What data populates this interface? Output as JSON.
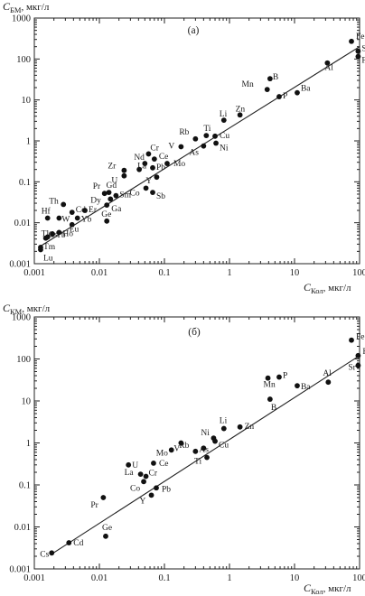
{
  "chart_data": [
    {
      "type": "scatter",
      "title": "(а)",
      "ylabel": {
        "symbol": "C",
        "sub": "БМ",
        "unit": ", мкг/л"
      },
      "xlabel": {
        "symbol": "C",
        "sub": "Кол",
        "unit": ", мкг/л"
      },
      "log_x": true,
      "log_y": true,
      "xlim": [
        0.001,
        100
      ],
      "ylim": [
        0.001,
        1000
      ],
      "x_ticks": [
        "0.001",
        "0.01",
        "0.1",
        "1",
        "10",
        "100"
      ],
      "y_ticks": [
        "0.001",
        "0.01",
        "0.1",
        "1",
        "10",
        "100",
        "1000"
      ],
      "fit_line": {
        "x": [
          0.0013,
          100
        ],
        "y": [
          0.0028,
          200
        ]
      },
      "points": [
        {
          "label": "Fe",
          "x": 75,
          "y": 270
        },
        {
          "label": "Sr",
          "x": 95,
          "y": 155
        },
        {
          "label": "F",
          "x": 95,
          "y": 115
        },
        {
          "label": "Al",
          "x": 32,
          "y": 80
        },
        {
          "label": "B",
          "x": 4.2,
          "y": 33
        },
        {
          "label": "Mn",
          "x": 3.8,
          "y": 18
        },
        {
          "label": "Ba",
          "x": 11,
          "y": 15
        },
        {
          "label": "P",
          "x": 5.8,
          "y": 12
        },
        {
          "label": "Li",
          "x": 0.82,
          "y": 3.2
        },
        {
          "label": "Zn",
          "x": 1.45,
          "y": 4.3
        },
        {
          "label": "Rb",
          "x": 0.3,
          "y": 1.12
        },
        {
          "label": "Ti",
          "x": 0.44,
          "y": 1.35
        },
        {
          "label": "Cu",
          "x": 0.6,
          "y": 1.3
        },
        {
          "label": "V",
          "x": 0.18,
          "y": 0.72
        },
        {
          "label": "As",
          "x": 0.4,
          "y": 0.75
        },
        {
          "label": "Ni",
          "x": 0.62,
          "y": 0.88
        },
        {
          "label": "Cr",
          "x": 0.057,
          "y": 0.48
        },
        {
          "label": "Ce",
          "x": 0.07,
          "y": 0.36
        },
        {
          "label": "Nd",
          "x": 0.05,
          "y": 0.28
        },
        {
          "label": "Mo",
          "x": 0.11,
          "y": 0.28
        },
        {
          "label": "La",
          "x": 0.041,
          "y": 0.2
        },
        {
          "label": "Zr",
          "x": 0.024,
          "y": 0.19
        },
        {
          "label": "Pb",
          "x": 0.066,
          "y": 0.22
        },
        {
          "label": "Y",
          "x": 0.076,
          "y": 0.13
        },
        {
          "label": "U",
          "x": 0.024,
          "y": 0.14
        },
        {
          "label": "Co",
          "x": 0.052,
          "y": 0.07
        },
        {
          "label": "Sb",
          "x": 0.066,
          "y": 0.055
        },
        {
          "label": "Pr",
          "x": 0.012,
          "y": 0.052
        },
        {
          "label": "Gd",
          "x": 0.014,
          "y": 0.055
        },
        {
          "label": "Sm",
          "x": 0.018,
          "y": 0.046
        },
        {
          "label": "Dy",
          "x": 0.0148,
          "y": 0.038
        },
        {
          "label": "Ga",
          "x": 0.013,
          "y": 0.027
        },
        {
          "label": "Ge",
          "x": 0.013,
          "y": 0.011
        },
        {
          "label": "Th",
          "x": 0.0028,
          "y": 0.028
        },
        {
          "label": "Cd",
          "x": 0.0038,
          "y": 0.018
        },
        {
          "label": "Er",
          "x": 0.006,
          "y": 0.02
        },
        {
          "label": "Hf",
          "x": 0.0016,
          "y": 0.013
        },
        {
          "label": "W",
          "x": 0.0024,
          "y": 0.013
        },
        {
          "label": "Yb",
          "x": 0.0046,
          "y": 0.013
        },
        {
          "label": "Eu",
          "x": 0.0038,
          "y": 0.009
        },
        {
          "label": "Ho",
          "x": 0.0024,
          "y": 0.0058
        },
        {
          "label": "Tl",
          "x": 0.0015,
          "y": 0.0042
        },
        {
          "label": "Cs",
          "x": 0.0016,
          "y": 0.0045
        },
        {
          "label": "Tb",
          "x": 0.0019,
          "y": 0.0053
        },
        {
          "label": "Tm",
          "x": 0.00125,
          "y": 0.0025
        },
        {
          "label": "Lu",
          "x": 0.00125,
          "y": 0.0022
        }
      ]
    },
    {
      "type": "scatter",
      "title": "(б)",
      "ylabel": {
        "symbol": "C",
        "sub": "КМ",
        "unit": ", мкг/л"
      },
      "xlabel": {
        "symbol": "C",
        "sub": "Кол",
        "unit": ", мкг/л"
      },
      "log_x": true,
      "log_y": true,
      "xlim": [
        0.001,
        100
      ],
      "ylim": [
        0.001,
        1000
      ],
      "x_ticks": [
        "0.001",
        "0.01",
        "0.1",
        "1",
        "10",
        "100"
      ],
      "y_ticks": [
        "0.001",
        "0.01",
        "0.1",
        "1",
        "10",
        "100",
        "1000"
      ],
      "fit_line": {
        "x": [
          0.0018,
          100
        ],
        "y": [
          0.0022,
          120
        ]
      },
      "points": [
        {
          "label": "Fe",
          "x": 75,
          "y": 280
        },
        {
          "label": "F",
          "x": 95,
          "y": 120
        },
        {
          "label": "Sr",
          "x": 95,
          "y": 70
        },
        {
          "label": "Al",
          "x": 33,
          "y": 28
        },
        {
          "label": "Mn",
          "x": 3.9,
          "y": 35
        },
        {
          "label": "P",
          "x": 5.8,
          "y": 37
        },
        {
          "label": "Ba",
          "x": 11,
          "y": 23
        },
        {
          "label": "B",
          "x": 4.2,
          "y": 11
        },
        {
          "label": "Li",
          "x": 0.82,
          "y": 2.2
        },
        {
          "label": "Zn",
          "x": 1.45,
          "y": 2.4
        },
        {
          "label": "Ni",
          "x": 0.57,
          "y": 1.3
        },
        {
          "label": "Cu",
          "x": 0.6,
          "y": 1.1
        },
        {
          "label": "As",
          "x": 0.4,
          "y": 0.75
        },
        {
          "label": "Ti",
          "x": 0.45,
          "y": 0.45
        },
        {
          "label": "Rb",
          "x": 0.3,
          "y": 0.63
        },
        {
          "label": "V",
          "x": 0.18,
          "y": 1.0
        },
        {
          "label": "Mo",
          "x": 0.128,
          "y": 0.68
        },
        {
          "label": "Ce",
          "x": 0.068,
          "y": 0.33
        },
        {
          "label": "U",
          "x": 0.028,
          "y": 0.3
        },
        {
          "label": "La",
          "x": 0.043,
          "y": 0.18
        },
        {
          "label": "Cr",
          "x": 0.052,
          "y": 0.16
        },
        {
          "label": "Co",
          "x": 0.048,
          "y": 0.12
        },
        {
          "label": "Y",
          "x": 0.063,
          "y": 0.057
        },
        {
          "label": "Pb",
          "x": 0.075,
          "y": 0.085
        },
        {
          "label": "Pr",
          "x": 0.0115,
          "y": 0.05
        },
        {
          "label": "Ge",
          "x": 0.0125,
          "y": 0.006
        },
        {
          "label": "Cd",
          "x": 0.0034,
          "y": 0.0042
        },
        {
          "label": "Cs",
          "x": 0.00185,
          "y": 0.0024
        }
      ]
    }
  ]
}
